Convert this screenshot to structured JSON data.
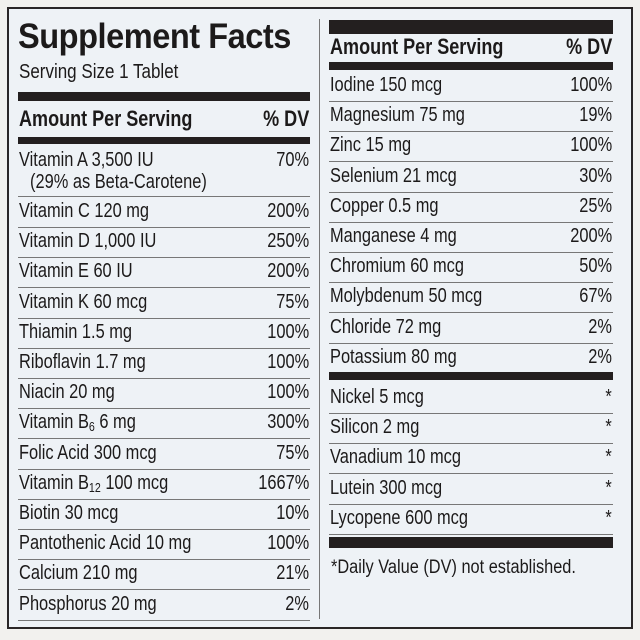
{
  "title": "Supplement Facts",
  "serving_size": "Serving Size 1 Tablet",
  "header": {
    "amount": "Amount Per Serving",
    "dv": "% DV"
  },
  "left_rows": [
    {
      "label": "Vitamin A 3,500 IU",
      "sub": "(29% as Beta-Carotene)",
      "dv": "70%"
    },
    {
      "label": "Vitamin C 120 mg",
      "dv": "200%"
    },
    {
      "label": "Vitamin D 1,000 IU",
      "dv": "250%"
    },
    {
      "label": "Vitamin E 60 IU",
      "dv": "200%"
    },
    {
      "label": "Vitamin K 60 mcg",
      "dv": "75%"
    },
    {
      "label": "Thiamin 1.5 mg",
      "dv": "100%"
    },
    {
      "label": "Riboflavin 1.7 mg",
      "dv": "100%"
    },
    {
      "label": "Niacin 20 mg",
      "dv": "100%"
    },
    {
      "label_pre": "Vitamin B",
      "label_sub": "6",
      "label_post": " 6 mg",
      "dv": "300%"
    },
    {
      "label": "Folic Acid 300 mcg",
      "dv": "75%"
    },
    {
      "label_pre": "Vitamin B",
      "label_sub": "12",
      "label_post": " 100 mcg",
      "dv": "1667%"
    },
    {
      "label": "Biotin 30 mcg",
      "dv": "10%"
    },
    {
      "label": "Pantothenic Acid 10 mg",
      "dv": "100%"
    },
    {
      "label": "Calcium 210 mg",
      "dv": "21%"
    },
    {
      "label": "Phosphorus 20 mg",
      "dv": "2%"
    }
  ],
  "right_rows": [
    {
      "label": "Iodine 150 mcg",
      "dv": "100%"
    },
    {
      "label": "Magnesium 75 mg",
      "dv": "19%"
    },
    {
      "label": "Zinc 15 mg",
      "dv": "100%"
    },
    {
      "label": "Selenium 21 mcg",
      "dv": "30%"
    },
    {
      "label": "Copper 0.5 mg",
      "dv": "25%"
    },
    {
      "label": "Manganese 4 mg",
      "dv": "200%"
    },
    {
      "label": "Chromium 60 mcg",
      "dv": "50%"
    },
    {
      "label": "Molybdenum 50 mcg",
      "dv": "67%"
    },
    {
      "label": "Chloride 72 mg",
      "dv": "2%"
    },
    {
      "label": "Potassium 80 mg",
      "dv": "2%"
    }
  ],
  "right_rows_2": [
    {
      "label": "Nickel 5 mcg",
      "dv": "*"
    },
    {
      "label": "Silicon 2 mg",
      "dv": "*"
    },
    {
      "label": "Vanadium 10 mcg",
      "dv": "*"
    },
    {
      "label": "Lutein 300 mcg",
      "dv": "*"
    },
    {
      "label": "Lycopene 600 mcg",
      "dv": "*"
    }
  ],
  "footnote": "*Daily Value (DV) not established."
}
